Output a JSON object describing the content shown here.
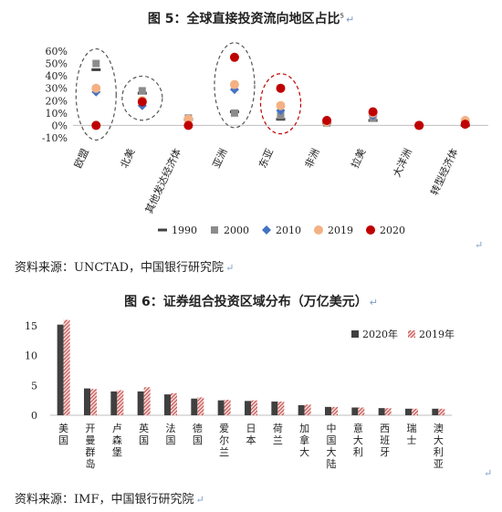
{
  "figure1": {
    "title": "图 5：全球直接投资流向地区占比",
    "superscript": "5",
    "source": "资料来源：UNCTAD，中国银行研究院"
  },
  "figure2": {
    "title": "图 6：证券组合投资区域分布（万亿美元）",
    "source": "资料来源：IMF，中国银行研究院"
  },
  "return_glyph": "↵",
  "colors": {
    "s1990": "#404040",
    "s2000": "#8c8c8c",
    "s2010": "#4472c4",
    "s2019": "#f4b183",
    "s2020": "#c00000",
    "bar2020": "#404040",
    "bar2019": "#c0504d"
  },
  "chart_data": [
    {
      "type": "scatter",
      "title": "图 5：全球直接投资流向地区占比",
      "categories": [
        "欧盟",
        "北美",
        "其他发达经济体",
        "亚洲",
        "东亚",
        "非洲",
        "拉美",
        "大洋洲",
        "转型经济体"
      ],
      "yticks": [
        "-10%",
        "0%",
        "10%",
        "20%",
        "30%",
        "40%",
        "50%",
        "60%"
      ],
      "ylim": [
        -10,
        60
      ],
      "series": [
        {
          "name": "1990",
          "marker": "dash",
          "values": [
            45,
            26,
            5,
            11,
            5,
            2,
            4,
            0,
            0
          ]
        },
        {
          "name": "2000",
          "marker": "square",
          "values": [
            50,
            28,
            6,
            10,
            8,
            2,
            6,
            0,
            2
          ]
        },
        {
          "name": "2010",
          "marker": "diamond",
          "values": [
            27,
            16,
            4,
            29,
            12,
            3,
            8,
            0,
            3
          ]
        },
        {
          "name": "2019",
          "marker": "circle",
          "values": [
            30,
            20,
            5,
            33,
            16,
            3,
            10,
            0,
            4
          ]
        },
        {
          "name": "2020",
          "marker": "circle",
          "values": [
            0,
            19,
            0,
            55,
            30,
            4,
            11,
            0,
            1
          ]
        }
      ],
      "ellipses": [
        {
          "category": "欧盟",
          "style": "gray-dashed"
        },
        {
          "category": "北美",
          "style": "gray-dashed"
        },
        {
          "category": "亚洲",
          "style": "gray-dashed"
        },
        {
          "category": "东亚",
          "style": "red-dashed"
        }
      ],
      "legend": "bottom",
      "grid": false
    },
    {
      "type": "bar",
      "title": "图 6：证券组合投资区域分布（万亿美元）",
      "categories": [
        "美国",
        "开曼群岛",
        "卢森堡",
        "英国",
        "法国",
        "德国",
        "爱尔兰",
        "日本",
        "荷兰",
        "加拿大",
        "中国大陆",
        "意大利",
        "西班牙",
        "瑞士",
        "澳大利亚"
      ],
      "yticks": [
        "0",
        "5",
        "10",
        "15"
      ],
      "ylim": [
        0,
        16
      ],
      "series": [
        {
          "name": "2020年",
          "values": [
            15.2,
            4.5,
            4.0,
            4.0,
            3.5,
            2.8,
            2.5,
            2.4,
            2.3,
            1.7,
            1.4,
            1.3,
            1.2,
            1.1,
            1.1
          ]
        },
        {
          "name": "2019年",
          "values": [
            16.0,
            4.4,
            4.2,
            4.7,
            3.7,
            3.0,
            2.6,
            2.5,
            2.3,
            1.8,
            1.4,
            1.3,
            1.2,
            1.1,
            1.1
          ]
        }
      ],
      "legend": "top-right",
      "grid": false
    }
  ]
}
